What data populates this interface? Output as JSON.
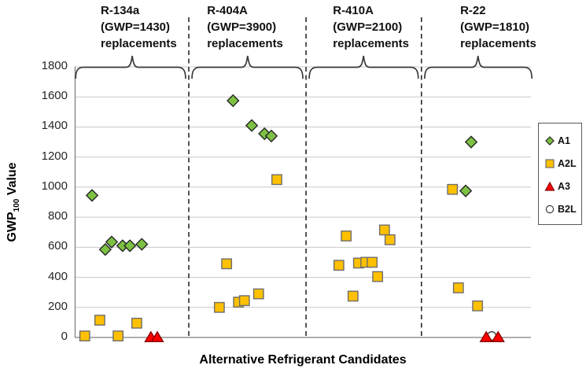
{
  "axis": {
    "x_title": "Alternative Refrigerant Candidates",
    "y_title_main": "GWP",
    "y_title_sub": "100",
    "y_title_rest": " Value"
  },
  "chart_data": {
    "type": "scatter",
    "title": "",
    "xlabel": "Alternative Refrigerant Candidates",
    "ylabel": "GWP100 Value",
    "ylim": [
      0,
      1800
    ],
    "yticks": [
      1800,
      1600,
      1400,
      1200,
      1000,
      800,
      600,
      400,
      200,
      0
    ],
    "grid": true,
    "legend_position": "right-outside",
    "x_unit": "percent_of_plot_width",
    "groups": [
      {
        "refrigerant": "R-134a",
        "gwp_label": "(GWP=1430)",
        "suffix": "replacements",
        "brace_span_pct": [
          0.2,
          24.3
        ],
        "brace_dip_pct": 12.6,
        "label_left_pct": 5.7
      },
      {
        "refrigerant": "R-404A",
        "gwp_label": "(GWP=3900)",
        "suffix": "replacements",
        "brace_span_pct": [
          25.7,
          50.0
        ],
        "brace_dip_pct": 37.9,
        "label_left_pct": 29.0
      },
      {
        "refrigerant": "R-410A",
        "gwp_label": "(GWP=2100)",
        "suffix": "replacements",
        "brace_span_pct": [
          51.4,
          75.3
        ],
        "brace_dip_pct": 63.3,
        "label_left_pct": 56.6
      },
      {
        "refrigerant": "R-22",
        "gwp_label": "(GWP=1810)",
        "suffix": "replacements",
        "brace_span_pct": [
          76.7,
          100.2
        ],
        "brace_dip_pct": 88.4,
        "label_left_pct": 84.5
      }
    ],
    "separators_pct": [
      25.0,
      50.7,
      76.0
    ],
    "series": [
      {
        "name": "A1",
        "marker": "diamond",
        "fill": "#7DC142",
        "stroke": "#262626",
        "z": 1,
        "points": [
          [
            3.8,
            945
          ],
          [
            6.7,
            585
          ],
          [
            8.1,
            635
          ],
          [
            10.5,
            610
          ],
          [
            12.1,
            610
          ],
          [
            14.7,
            620
          ],
          [
            34.7,
            1575
          ],
          [
            38.8,
            1410
          ],
          [
            41.6,
            1355
          ],
          [
            43.1,
            1340
          ],
          [
            85.7,
            975
          ],
          [
            86.9,
            1300
          ]
        ]
      },
      {
        "name": "A2L",
        "marker": "square",
        "fill": "#FFC000",
        "stroke": "#6E6E6E",
        "z": 2,
        "points": [
          [
            2.2,
            10
          ],
          [
            5.5,
            115
          ],
          [
            9.5,
            10
          ],
          [
            13.6,
            95
          ],
          [
            31.7,
            200
          ],
          [
            33.3,
            490
          ],
          [
            35.9,
            235
          ],
          [
            37.2,
            245
          ],
          [
            40.3,
            290
          ],
          [
            44.3,
            1050
          ],
          [
            57.9,
            480
          ],
          [
            59.5,
            675
          ],
          [
            61.0,
            275
          ],
          [
            62.2,
            495
          ],
          [
            63.8,
            500
          ],
          [
            65.2,
            500
          ],
          [
            66.4,
            405
          ],
          [
            67.9,
            715
          ],
          [
            69.1,
            650
          ],
          [
            82.8,
            985
          ],
          [
            84.1,
            330
          ],
          [
            88.3,
            210
          ]
        ]
      },
      {
        "name": "A3",
        "marker": "triangle",
        "fill": "#FF0000",
        "stroke": "#8B0000",
        "z": 3,
        "points": [
          [
            16.7,
            5
          ],
          [
            18.1,
            5
          ],
          [
            90.2,
            5
          ],
          [
            92.8,
            5
          ]
        ]
      },
      {
        "name": "B2L",
        "marker": "circle",
        "fill": "#FFFFFF",
        "stroke": "#3A3A3A",
        "z": 0,
        "points": [
          [
            91.4,
            10
          ]
        ]
      }
    ],
    "colors": {
      "grid": "#C9C9C9",
      "axis": "#7F7F7F",
      "separator": "#1A1A1A",
      "brace": "#3A3A3A",
      "text": "#1A1A1A"
    }
  }
}
